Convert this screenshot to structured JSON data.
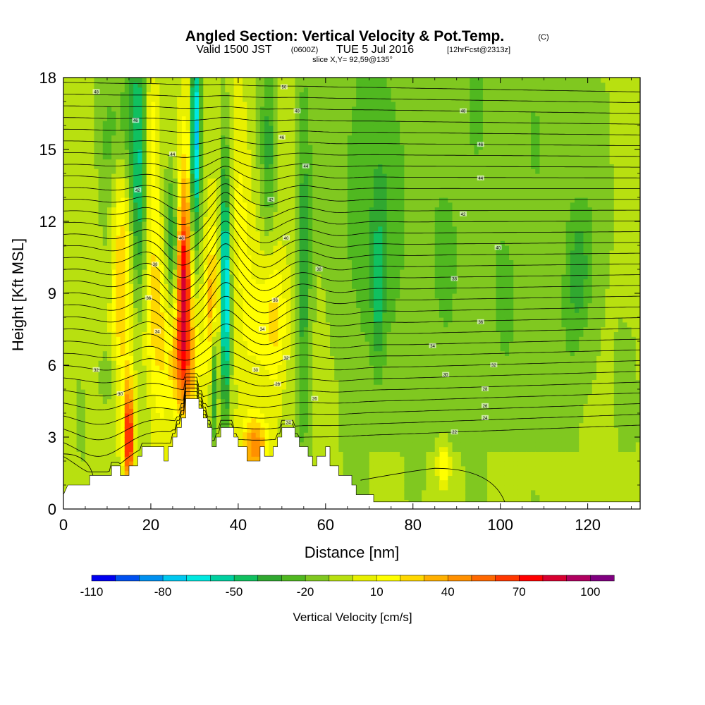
{
  "chart_data": {
    "type": "heatmap",
    "title": "Angled Section: Vertical Velocity & Pot.Temp.",
    "title_unit": "(C)",
    "subtitle_prefix": "Valid 1500 JST",
    "subtitle_zulu": "(0600Z)",
    "subtitle_date": "TUE 5 Jul 2016",
    "subtitle_forecast": "[12hrFcst@2313z]",
    "slice_label": "slice X,Y= 92,59@135°",
    "xlabel": "Distance [nm]",
    "ylabel": "Height [Kft MSL]",
    "xlim": [
      0,
      132
    ],
    "ylim": [
      0,
      18
    ],
    "x_ticks": [
      0,
      20,
      40,
      60,
      80,
      100,
      120
    ],
    "y_ticks": [
      0,
      3,
      6,
      9,
      12,
      15,
      18
    ],
    "colorbar": {
      "title": "Vertical Velocity [cm/s]",
      "tick_values": [
        -110,
        -80,
        -50,
        -20,
        10,
        40,
        70,
        100
      ],
      "levels": [
        -110,
        -100,
        -90,
        -80,
        -70,
        -60,
        -50,
        -40,
        -30,
        -20,
        -10,
        0,
        10,
        20,
        30,
        40,
        50,
        60,
        70,
        80,
        90,
        100,
        110
      ],
      "colors": [
        "#0000f0",
        "#0050f0",
        "#0090f0",
        "#00c8f0",
        "#00e8e0",
        "#00d0a0",
        "#10c060",
        "#30a830",
        "#50b820",
        "#80c820",
        "#b8e010",
        "#e8f000",
        "#ffff00",
        "#ffd800",
        "#ffb000",
        "#ff9000",
        "#ff6800",
        "#ff3800",
        "#ff0000",
        "#d80030",
        "#b00060",
        "#800080"
      ]
    },
    "terrain_kft": [
      [
        0,
        0.6
      ],
      [
        1,
        1.0
      ],
      [
        6,
        1.0
      ],
      [
        6,
        1.4
      ],
      [
        11,
        1.4
      ],
      [
        11,
        1.8
      ],
      [
        13,
        1.8
      ],
      [
        13,
        1.4
      ],
      [
        15,
        1.4
      ],
      [
        15,
        1.8
      ],
      [
        17,
        1.8
      ],
      [
        17,
        2.2
      ],
      [
        18,
        2.2
      ],
      [
        18,
        2.6
      ],
      [
        23,
        2.6
      ],
      [
        23,
        2.0
      ],
      [
        24,
        2.0
      ],
      [
        24,
        2.6
      ],
      [
        25,
        2.6
      ],
      [
        25,
        3.0
      ],
      [
        26,
        3.0
      ],
      [
        26,
        3.4
      ],
      [
        27,
        3.4
      ],
      [
        27,
        3.8
      ],
      [
        28,
        3.8
      ],
      [
        28,
        4.6
      ],
      [
        31,
        4.6
      ],
      [
        31,
        4.2
      ],
      [
        32,
        4.2
      ],
      [
        32,
        3.8
      ],
      [
        33,
        3.8
      ],
      [
        33,
        3.4
      ],
      [
        34,
        3.4
      ],
      [
        34,
        2.6
      ],
      [
        35,
        2.6
      ],
      [
        35,
        3.0
      ],
      [
        36,
        3.0
      ],
      [
        36,
        3.4
      ],
      [
        39,
        3.4
      ],
      [
        39,
        3.0
      ],
      [
        40,
        3.0
      ],
      [
        40,
        2.6
      ],
      [
        42,
        2.6
      ],
      [
        42,
        2.0
      ],
      [
        45,
        2.0
      ],
      [
        45,
        2.6
      ],
      [
        46,
        2.6
      ],
      [
        46,
        2.2
      ],
      [
        48,
        2.2
      ],
      [
        48,
        2.6
      ],
      [
        49,
        2.6
      ],
      [
        49,
        3.0
      ],
      [
        50,
        3.0
      ],
      [
        50,
        3.4
      ],
      [
        53,
        3.4
      ],
      [
        53,
        3.0
      ],
      [
        54,
        3.0
      ],
      [
        54,
        2.6
      ],
      [
        56,
        2.6
      ],
      [
        56,
        2.2
      ],
      [
        57,
        2.2
      ],
      [
        57,
        1.8
      ],
      [
        58,
        1.8
      ],
      [
        58,
        2.2
      ],
      [
        60,
        2.2
      ],
      [
        60,
        2.6
      ],
      [
        61,
        2.6
      ],
      [
        61,
        1.8
      ],
      [
        63,
        1.8
      ],
      [
        63,
        1.4
      ],
      [
        66,
        1.4
      ],
      [
        66,
        1.0
      ],
      [
        67,
        1.0
      ],
      [
        67,
        0.6
      ],
      [
        71,
        0.6
      ],
      [
        71,
        0.3
      ],
      [
        132,
        0.3
      ]
    ],
    "updrafts": [
      {
        "x": 15,
        "y": 3.0,
        "sx": 0.8,
        "sy": 1.5,
        "v": 80
      },
      {
        "x": 27.5,
        "y": 9.5,
        "sx": 1.2,
        "sy": 2.8,
        "v": 75
      },
      {
        "x": 27.5,
        "y": 6.0,
        "sx": 2.5,
        "sy": 1.5,
        "v": 30
      },
      {
        "x": 34,
        "y": 8.5,
        "sx": 1.2,
        "sy": 2.0,
        "v": 35
      },
      {
        "x": 44,
        "y": 2.6,
        "sx": 2.0,
        "sy": 0.8,
        "v": 50
      },
      {
        "x": 48,
        "y": 8.0,
        "sx": 3.0,
        "sy": 2.0,
        "v": 25
      },
      {
        "x": 22,
        "y": 8.5,
        "sx": 3.0,
        "sy": 2.5,
        "v": 20
      },
      {
        "x": 13,
        "y": 10.0,
        "sx": 1.5,
        "sy": 4.0,
        "v": 30
      },
      {
        "x": 20,
        "y": 15.0,
        "sx": 1.5,
        "sy": 3.0,
        "v": 25
      },
      {
        "x": 29,
        "y": 16.0,
        "sx": 1.0,
        "sy": 3.0,
        "v": 40
      },
      {
        "x": 40,
        "y": 12.0,
        "sx": 3.0,
        "sy": 4.0,
        "v": 15
      },
      {
        "x": 87,
        "y": 1.8,
        "sx": 1.0,
        "sy": 0.6,
        "v": 30
      }
    ],
    "downdrafts": [
      {
        "x": 30,
        "y": 15.5,
        "sx": 0.9,
        "sy": 3.0,
        "v": -85
      },
      {
        "x": 37,
        "y": 9.0,
        "sx": 0.8,
        "sy": 4.0,
        "v": -80
      },
      {
        "x": 34.5,
        "y": 5.5,
        "sx": 0.6,
        "sy": 2.0,
        "v": -50
      },
      {
        "x": 17.5,
        "y": 14.0,
        "sx": 1.3,
        "sy": 4.0,
        "v": -45
      },
      {
        "x": 25,
        "y": 11.0,
        "sx": 1.0,
        "sy": 2.0,
        "v": -40
      },
      {
        "x": 55,
        "y": 10.0,
        "sx": 1.2,
        "sy": 6.0,
        "v": -30
      },
      {
        "x": 47,
        "y": 15.0,
        "sx": 1.2,
        "sy": 3.0,
        "v": -25
      },
      {
        "x": 13,
        "y": 16.0,
        "sx": 3.0,
        "sy": 2.0,
        "v": -25
      },
      {
        "x": 70,
        "y": 13.0,
        "sx": 6.0,
        "sy": 6.0,
        "v": -15
      },
      {
        "x": 95,
        "y": 12.0,
        "sx": 20.0,
        "sy": 8.0,
        "v": -12
      },
      {
        "x": 118,
        "y": 10.0,
        "sx": 2.0,
        "sy": 2.0,
        "v": -25
      },
      {
        "x": 72,
        "y": 9.0,
        "sx": 1.0,
        "sy": 2.0,
        "v": -25
      },
      {
        "x": 10,
        "y": 5.5,
        "sx": 2.0,
        "sy": 1.0,
        "v": -15
      }
    ],
    "isentropes": {
      "count": 32,
      "base_left_kft": 2.6,
      "base_right_kft": 3.5,
      "top_left_kft": 17.8,
      "top_right_kft": 17.4
    },
    "contour_labels": [
      {
        "x": 7.5,
        "y": 17.4,
        "t": "48"
      },
      {
        "x": 16.5,
        "y": 16.2,
        "t": "46"
      },
      {
        "x": 25,
        "y": 14.8,
        "t": "44"
      },
      {
        "x": 17,
        "y": 13.3,
        "t": "42"
      },
      {
        "x": 27,
        "y": 11.3,
        "t": "40"
      },
      {
        "x": 21,
        "y": 10.2,
        "t": "38"
      },
      {
        "x": 19.5,
        "y": 8.8,
        "t": "36"
      },
      {
        "x": 21.5,
        "y": 7.4,
        "t": "34"
      },
      {
        "x": 7.5,
        "y": 5.8,
        "t": "32"
      },
      {
        "x": 13,
        "y": 4.8,
        "t": "30"
      },
      {
        "x": 50.5,
        "y": 17.6,
        "t": "50"
      },
      {
        "x": 53.5,
        "y": 16.6,
        "t": "48"
      },
      {
        "x": 50,
        "y": 15.5,
        "t": "46"
      },
      {
        "x": 55.5,
        "y": 14.3,
        "t": "44"
      },
      {
        "x": 47.5,
        "y": 12.9,
        "t": "42"
      },
      {
        "x": 51,
        "y": 11.3,
        "t": "40"
      },
      {
        "x": 58.5,
        "y": 10.0,
        "t": "38"
      },
      {
        "x": 48.5,
        "y": 8.7,
        "t": "36"
      },
      {
        "x": 45.5,
        "y": 7.5,
        "t": "34"
      },
      {
        "x": 51,
        "y": 6.3,
        "t": "32"
      },
      {
        "x": 44,
        "y": 5.8,
        "t": "30"
      },
      {
        "x": 49,
        "y": 5.2,
        "t": "28"
      },
      {
        "x": 57.5,
        "y": 4.6,
        "t": "26"
      },
      {
        "x": 51.5,
        "y": 3.6,
        "t": "24"
      },
      {
        "x": 91.5,
        "y": 16.6,
        "t": "48"
      },
      {
        "x": 95.5,
        "y": 15.2,
        "t": "46"
      },
      {
        "x": 95.5,
        "y": 13.8,
        "t": "44"
      },
      {
        "x": 91.5,
        "y": 12.3,
        "t": "42"
      },
      {
        "x": 99.5,
        "y": 10.9,
        "t": "40"
      },
      {
        "x": 89.5,
        "y": 9.6,
        "t": "38"
      },
      {
        "x": 95.5,
        "y": 7.8,
        "t": "36"
      },
      {
        "x": 84.5,
        "y": 6.8,
        "t": "34"
      },
      {
        "x": 98.5,
        "y": 6.0,
        "t": "32"
      },
      {
        "x": 87.5,
        "y": 5.6,
        "t": "30"
      },
      {
        "x": 96.5,
        "y": 5.0,
        "t": "28"
      },
      {
        "x": 96.5,
        "y": 4.3,
        "t": "26"
      },
      {
        "x": 96.5,
        "y": 3.8,
        "t": "24"
      },
      {
        "x": 89.5,
        "y": 3.2,
        "t": "22"
      }
    ]
  }
}
